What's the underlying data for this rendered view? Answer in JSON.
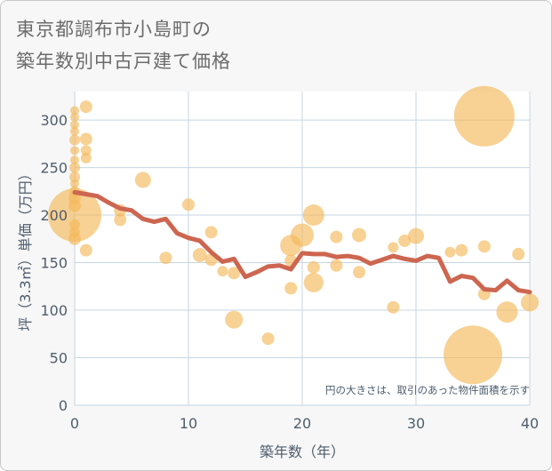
{
  "chart_data": {
    "type": "scatter",
    "title_lines": [
      "東京都調布市小島町の",
      "築年数別中古戸建て価格"
    ],
    "xlabel": "築年数（年）",
    "ylabel": "坪（3.3㎡）単価（万円）",
    "xlim": [
      0,
      40
    ],
    "ylim": [
      0,
      330
    ],
    "x_ticks": [
      0,
      10,
      20,
      30,
      40
    ],
    "y_ticks": [
      0,
      50,
      100,
      150,
      200,
      250,
      300
    ],
    "grid": true,
    "note": "円の大きさは、取引のあった物件面積を示す",
    "colors": {
      "bubble": "#f5b95a",
      "line": "#cd6650",
      "grid": "#c7d6e2"
    },
    "bubbles": [
      {
        "x": 0,
        "y": 310,
        "s": 5
      },
      {
        "x": 0,
        "y": 303,
        "s": 5
      },
      {
        "x": 0,
        "y": 295,
        "s": 5
      },
      {
        "x": 0,
        "y": 288,
        "s": 5
      },
      {
        "x": 0,
        "y": 279,
        "s": 6
      },
      {
        "x": 0,
        "y": 268,
        "s": 5
      },
      {
        "x": 0,
        "y": 258,
        "s": 5
      },
      {
        "x": 0,
        "y": 250,
        "s": 6
      },
      {
        "x": 0,
        "y": 240,
        "s": 6
      },
      {
        "x": 0,
        "y": 233,
        "s": 5
      },
      {
        "x": 0,
        "y": 225,
        "s": 6
      },
      {
        "x": 0,
        "y": 218,
        "s": 7
      },
      {
        "x": 0,
        "y": 210,
        "s": 7
      },
      {
        "x": 0,
        "y": 200,
        "s": 30
      },
      {
        "x": 0,
        "y": 190,
        "s": 6
      },
      {
        "x": 0,
        "y": 182,
        "s": 6
      },
      {
        "x": 0,
        "y": 175,
        "s": 7
      },
      {
        "x": 1,
        "y": 314,
        "s": 7
      },
      {
        "x": 1,
        "y": 280,
        "s": 7
      },
      {
        "x": 1,
        "y": 268,
        "s": 6
      },
      {
        "x": 1,
        "y": 260,
        "s": 6
      },
      {
        "x": 1,
        "y": 163,
        "s": 7
      },
      {
        "x": 4,
        "y": 205,
        "s": 7
      },
      {
        "x": 4,
        "y": 195,
        "s": 7
      },
      {
        "x": 6,
        "y": 237,
        "s": 9
      },
      {
        "x": 8,
        "y": 155,
        "s": 7
      },
      {
        "x": 10,
        "y": 211,
        "s": 7
      },
      {
        "x": 11,
        "y": 158,
        "s": 8
      },
      {
        "x": 12,
        "y": 182,
        "s": 7
      },
      {
        "x": 12,
        "y": 153,
        "s": 7
      },
      {
        "x": 13,
        "y": 141,
        "s": 6
      },
      {
        "x": 14,
        "y": 139,
        "s": 7
      },
      {
        "x": 14,
        "y": 90,
        "s": 10
      },
      {
        "x": 17,
        "y": 70,
        "s": 7
      },
      {
        "x": 19,
        "y": 152,
        "s": 7
      },
      {
        "x": 19,
        "y": 123,
        "s": 7
      },
      {
        "x": 19,
        "y": 168,
        "s": 12
      },
      {
        "x": 20,
        "y": 179,
        "s": 13
      },
      {
        "x": 21,
        "y": 200,
        "s": 12
      },
      {
        "x": 21,
        "y": 145,
        "s": 7
      },
      {
        "x": 21,
        "y": 129,
        "s": 11
      },
      {
        "x": 23,
        "y": 177,
        "s": 7
      },
      {
        "x": 23,
        "y": 147,
        "s": 7
      },
      {
        "x": 25,
        "y": 179,
        "s": 8
      },
      {
        "x": 25,
        "y": 140,
        "s": 7
      },
      {
        "x": 28,
        "y": 166,
        "s": 6
      },
      {
        "x": 28,
        "y": 103,
        "s": 7
      },
      {
        "x": 29,
        "y": 173,
        "s": 7
      },
      {
        "x": 30,
        "y": 178,
        "s": 9
      },
      {
        "x": 33,
        "y": 161,
        "s": 6
      },
      {
        "x": 34,
        "y": 163,
        "s": 7
      },
      {
        "x": 35,
        "y": 53,
        "s": 33
      },
      {
        "x": 36,
        "y": 304,
        "s": 34
      },
      {
        "x": 36,
        "y": 167,
        "s": 7
      },
      {
        "x": 36,
        "y": 117,
        "s": 7
      },
      {
        "x": 38,
        "y": 98,
        "s": 12
      },
      {
        "x": 39,
        "y": 159,
        "s": 7
      },
      {
        "x": 40,
        "y": 108,
        "s": 10
      }
    ],
    "line": {
      "x": [
        0,
        1,
        2,
        3,
        4,
        5,
        6,
        7,
        8,
        9,
        10,
        11,
        12,
        13,
        14,
        15,
        16,
        17,
        18,
        19,
        20,
        21,
        22,
        23,
        24,
        25,
        26,
        27,
        28,
        29,
        30,
        31,
        32,
        33,
        34,
        35,
        36,
        37,
        38,
        39,
        40
      ],
      "y": [
        224,
        222,
        220,
        213,
        207,
        205,
        196,
        193,
        196,
        181,
        176,
        173,
        161,
        151,
        154,
        135,
        140,
        146,
        147,
        143,
        160,
        159,
        159,
        156,
        157,
        155,
        149,
        153,
        157,
        154,
        152,
        157,
        155,
        130,
        136,
        134,
        122,
        121,
        131,
        121,
        119
      ]
    }
  }
}
